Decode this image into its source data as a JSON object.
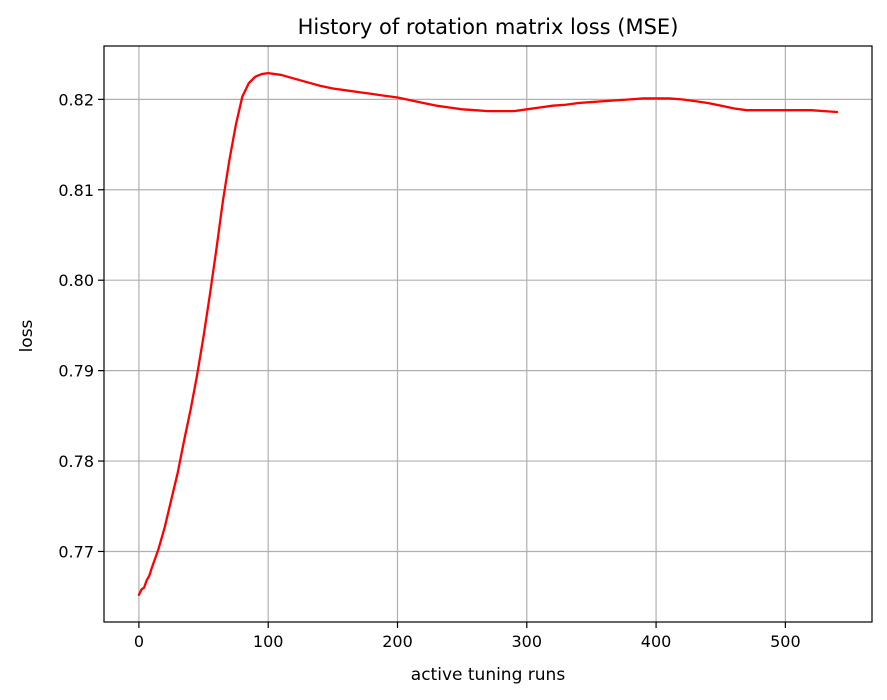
{
  "chart_data": {
    "type": "line",
    "title": "History of rotation matrix loss (MSE)",
    "xlabel": "active tuning runs",
    "ylabel": "loss",
    "xlim": [
      -27,
      567
    ],
    "ylim": [
      0.7622,
      0.8259
    ],
    "xticks": [
      0,
      100,
      200,
      300,
      400,
      500
    ],
    "xtick_labels": [
      "0",
      "100",
      "200",
      "300",
      "400",
      "500"
    ],
    "yticks": [
      0.77,
      0.78,
      0.79,
      0.8,
      0.81,
      0.82
    ],
    "ytick_labels": [
      "0.77",
      "0.78",
      "0.79",
      "0.80",
      "0.81",
      "0.82"
    ],
    "grid": true,
    "series": [
      {
        "color": "#ff0000",
        "x": [
          0,
          2,
          4,
          6,
          8,
          10,
          15,
          20,
          25,
          30,
          35,
          40,
          45,
          50,
          55,
          60,
          65,
          70,
          75,
          80,
          85,
          90,
          95,
          100,
          110,
          120,
          130,
          140,
          150,
          160,
          170,
          180,
          190,
          200,
          210,
          220,
          230,
          240,
          250,
          260,
          270,
          280,
          290,
          300,
          310,
          320,
          330,
          340,
          350,
          360,
          370,
          380,
          390,
          400,
          410,
          420,
          430,
          440,
          450,
          460,
          470,
          480,
          490,
          500,
          510,
          520,
          530,
          540
        ],
        "y": [
          0.7652,
          0.7658,
          0.766,
          0.7668,
          0.7673,
          0.7682,
          0.7702,
          0.7727,
          0.7757,
          0.7787,
          0.7823,
          0.7857,
          0.7895,
          0.7938,
          0.7985,
          0.8035,
          0.8088,
          0.8133,
          0.8172,
          0.8203,
          0.8218,
          0.8225,
          0.8228,
          0.8229,
          0.8227,
          0.8223,
          0.8219,
          0.8215,
          0.8212,
          0.821,
          0.8208,
          0.8206,
          0.8204,
          0.8202,
          0.8199,
          0.8196,
          0.8193,
          0.8191,
          0.8189,
          0.8188,
          0.8187,
          0.8187,
          0.8187,
          0.8189,
          0.8191,
          0.8193,
          0.8194,
          0.8196,
          0.8197,
          0.8198,
          0.8199,
          0.82,
          0.8201,
          0.8201,
          0.8201,
          0.82,
          0.8198,
          0.8196,
          0.8193,
          0.819,
          0.8188,
          0.8188,
          0.8188,
          0.8188,
          0.8188,
          0.8188,
          0.8187,
          0.8186
        ]
      }
    ]
  }
}
